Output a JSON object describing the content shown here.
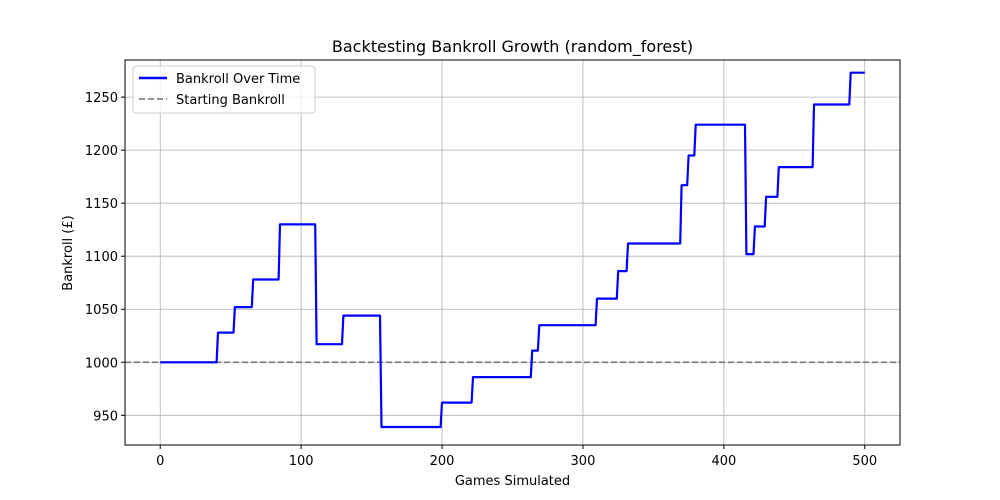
{
  "chart_data": {
    "type": "line",
    "title": "Backtesting Bankroll Growth (random_forest)",
    "xlabel": "Games Simulated",
    "ylabel": "Bankroll (£)",
    "xlim": [
      -25,
      525
    ],
    "ylim": [
      922,
      1285
    ],
    "xticks": [
      0,
      100,
      200,
      300,
      400,
      500
    ],
    "yticks": [
      950,
      1000,
      1050,
      1100,
      1150,
      1200,
      1250
    ],
    "grid": true,
    "legend_position": "top-left",
    "series": [
      {
        "name": "Bankroll Over Time",
        "color": "#0000ff",
        "style": "solid",
        "x": [
          0,
          40,
          41,
          52,
          53,
          65,
          66,
          84,
          85,
          110,
          111,
          129,
          130,
          156,
          157,
          199,
          200,
          221,
          222,
          263,
          264,
          268,
          269,
          309,
          310,
          324,
          325,
          331,
          332,
          369,
          370,
          374,
          375,
          379,
          380,
          415,
          416,
          421,
          422,
          429,
          430,
          438,
          439,
          463,
          464,
          489,
          490,
          500
        ],
        "y": [
          1000,
          1000,
          1028,
          1028,
          1052,
          1052,
          1078,
          1078,
          1130,
          1130,
          1017,
          1017,
          1044,
          1044,
          939,
          939,
          962,
          962,
          986,
          986,
          1011,
          1011,
          1035,
          1035,
          1060,
          1060,
          1086,
          1086,
          1112,
          1112,
          1167,
          1167,
          1195,
          1195,
          1224,
          1224,
          1102,
          1102,
          1128,
          1128,
          1156,
          1156,
          1184,
          1184,
          1243,
          1243,
          1273,
          1273
        ]
      },
      {
        "name": "Starting Bankroll",
        "color": "#808080",
        "style": "dashed",
        "hline": 1000
      }
    ]
  }
}
